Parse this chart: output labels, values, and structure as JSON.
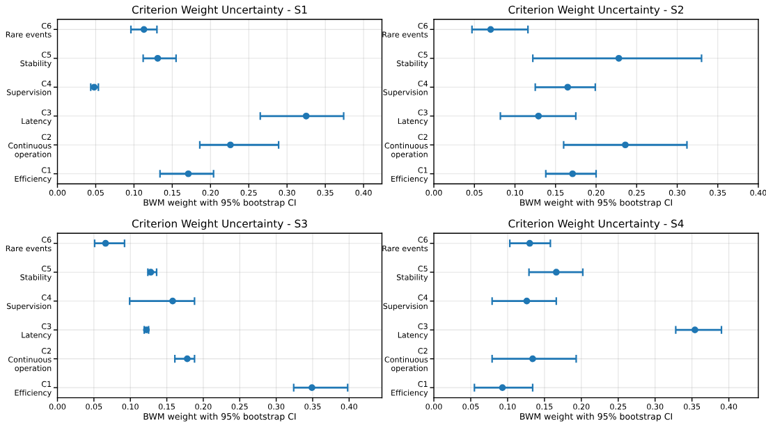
{
  "chart_data": [
    {
      "type": "scatter",
      "orientation": "horizontal",
      "title": "Criterion Weight Uncertainty - S1",
      "xlabel": "BWM weight with 95% bootstrap CI",
      "categories": [
        "C6\nRare events",
        "C5\nStability",
        "C4\nSupervision",
        "C3\nLatency",
        "C2\nContinuous\noperation",
        "C1\nEfficiency"
      ],
      "color": "#1f77b4",
      "values": [
        0.113,
        0.131,
        0.048,
        0.325,
        0.226,
        0.171
      ],
      "errors": [
        [
          0.096,
          0.13
        ],
        [
          0.112,
          0.155
        ],
        [
          0.0435,
          0.0535
        ],
        [
          0.265,
          0.374
        ],
        [
          0.186,
          0.289
        ],
        [
          0.134,
          0.204
        ]
      ],
      "xlim": [
        0,
        0.424
      ],
      "xticks": [
        {
          "value": 0,
          "label": "0.00"
        },
        0.05,
        {
          "value": 0.1,
          "label": "0.10"
        },
        0.15,
        {
          "value": 0.2,
          "label": "0.20"
        },
        0.25,
        {
          "value": 0.3,
          "label": "0.30"
        },
        0.35,
        {
          "value": 0.4,
          "label": "0.40"
        }
      ],
      "grid": true,
      "marker": "circle"
    },
    {
      "type": "scatter",
      "orientation": "horizontal",
      "title": "Criterion Weight Uncertainty - S2",
      "xlabel": "BWM weight with 95% bootstrap CI",
      "categories": [
        "C6\nRare events",
        "C5\nStability",
        "C4\nSupervision",
        "C3\nLatency",
        "C2\nContinuous\noperation",
        "C1\nEfficiency"
      ],
      "color": "#1f77b4",
      "values": [
        0.07,
        0.228,
        0.165,
        0.129,
        0.236,
        0.171
      ],
      "errors": [
        [
          0.047,
          0.116
        ],
        [
          0.122,
          0.33
        ],
        [
          0.125,
          0.199
        ],
        [
          0.082,
          0.175
        ],
        [
          0.16,
          0.312
        ],
        [
          0.138,
          0.2
        ]
      ],
      "xlim": [
        0,
        0.4
      ],
      "xticks": [
        {
          "value": 0,
          "label": "0.00"
        },
        0.05,
        {
          "value": 0.1,
          "label": "0.10"
        },
        0.15,
        {
          "value": 0.2,
          "label": "0.20"
        },
        0.25,
        {
          "value": 0.3,
          "label": "0.30"
        },
        0.35,
        {
          "value": 0.4,
          "label": "0.40"
        }
      ],
      "grid": true,
      "marker": "circle"
    },
    {
      "type": "scatter",
      "orientation": "horizontal",
      "title": "Criterion Weight Uncertainty - S3",
      "xlabel": "BWM weight with 95% bootstrap CI",
      "categories": [
        "C6\nRare events",
        "C5\nStability",
        "C4\nSupervision",
        "C3\nLatency",
        "C2\nContinuous\noperation",
        "C1\nEfficiency"
      ],
      "color": "#1f77b4",
      "values": [
        0.066,
        0.128,
        0.158,
        0.122,
        0.178,
        0.349
      ],
      "errors": [
        [
          0.051,
          0.092
        ],
        [
          0.124,
          0.136
        ],
        [
          0.099,
          0.188
        ],
        [
          0.119,
          0.125
        ],
        [
          0.161,
          0.188
        ],
        [
          0.324,
          0.398
        ]
      ],
      "xlim": [
        0,
        0.445
      ],
      "xticks": [
        {
          "value": 0,
          "label": "0.00"
        },
        0.05,
        {
          "value": 0.1,
          "label": "0.10"
        },
        0.15,
        {
          "value": 0.2,
          "label": "0.20"
        },
        0.25,
        {
          "value": 0.3,
          "label": "0.30"
        },
        0.35,
        {
          "value": 0.4,
          "label": "0.40"
        }
      ],
      "grid": true,
      "marker": "circle"
    },
    {
      "type": "scatter",
      "orientation": "horizontal",
      "title": "Criterion Weight Uncertainty - S4",
      "xlabel": "BWM weight with 95% bootstrap CI",
      "categories": [
        "C6\nRare events",
        "C5\nStability",
        "C4\nSupervision",
        "C3\nLatency",
        "C2\nContinuous\noperation",
        "C1\nEfficiency"
      ],
      "color": "#1f77b4",
      "values": [
        0.13,
        0.166,
        0.126,
        0.354,
        0.134,
        0.093
      ],
      "errors": [
        [
          0.103,
          0.158
        ],
        [
          0.129,
          0.202
        ],
        [
          0.079,
          0.166
        ],
        [
          0.328,
          0.39
        ],
        [
          0.079,
          0.193
        ],
        [
          0.055,
          0.134
        ]
      ],
      "xlim": [
        0,
        0.44
      ],
      "xticks": [
        {
          "value": 0,
          "label": "0.00"
        },
        0.05,
        {
          "value": 0.1,
          "label": "0.10"
        },
        0.15,
        {
          "value": 0.2,
          "label": "0.20"
        },
        0.25,
        {
          "value": 0.3,
          "label": "0.30"
        },
        0.35,
        {
          "value": 0.4,
          "label": "0.40"
        }
      ],
      "grid": true,
      "marker": "circle"
    }
  ]
}
